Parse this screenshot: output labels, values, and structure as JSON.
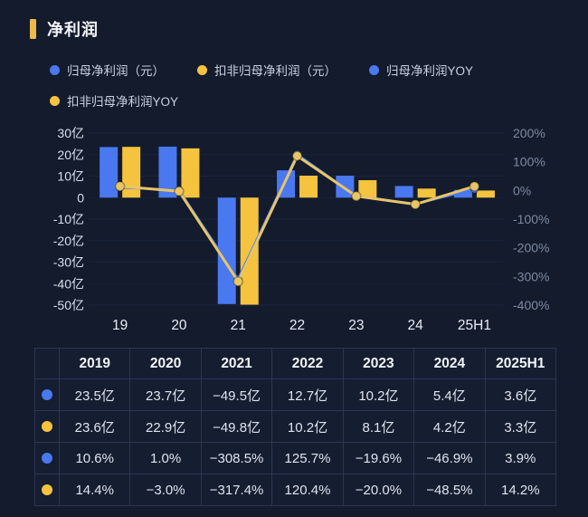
{
  "page": {
    "title": "净利润"
  },
  "legend": [
    {
      "label": "归母净利润（元）",
      "color": "#4a78f0"
    },
    {
      "label": "扣非归母净利润（元）",
      "color": "#f5c33e"
    },
    {
      "label": "归母净利润YOY",
      "color": "#4a78f0"
    },
    {
      "label": "扣非归母净利润YOY",
      "color": "#f5c33e"
    }
  ],
  "chart_data": {
    "type": "bar+line combo",
    "title": "净利润",
    "categories": [
      "19",
      "20",
      "21",
      "22",
      "23",
      "24",
      "25H1"
    ],
    "series": [
      {
        "name": "归母净利润（元）",
        "type": "bar",
        "axis": "left",
        "unit": "亿",
        "color": "#4a78f0",
        "values": [
          23.5,
          23.7,
          -49.5,
          12.7,
          10.2,
          5.4,
          3.6
        ]
      },
      {
        "name": "扣非归母净利润（元）",
        "type": "bar",
        "axis": "left",
        "unit": "亿",
        "color": "#f5c33e",
        "values": [
          23.6,
          22.9,
          -49.8,
          10.2,
          8.1,
          4.2,
          3.3
        ]
      },
      {
        "name": "归母净利润YOY",
        "type": "line",
        "axis": "right",
        "unit": "%",
        "color": "#4a78f0",
        "values": [
          10.6,
          1.0,
          -308.5,
          125.7,
          -19.6,
          -46.9,
          3.9
        ]
      },
      {
        "name": "扣非归母净利润YOY",
        "type": "line",
        "axis": "right",
        "unit": "%",
        "color": "#e8c566",
        "values": [
          14.4,
          -3.0,
          -317.4,
          120.4,
          -20.0,
          -48.5,
          14.2
        ]
      }
    ],
    "left_axis": {
      "min": -50,
      "max": 30,
      "unit": "亿",
      "ticks": [
        "30亿",
        "20亿",
        "10亿",
        "0",
        "-10亿",
        "-20亿",
        "-30亿",
        "-40亿",
        "-50亿"
      ]
    },
    "right_axis": {
      "min": -400,
      "max": 200,
      "unit": "%",
      "ticks": [
        "200%",
        "100%",
        "0%",
        "-100%",
        "-200%",
        "-300%",
        "-400%"
      ]
    },
    "grid": true,
    "legend_position": "top"
  },
  "table": {
    "corner": "",
    "headers": [
      "2019",
      "2020",
      "2021",
      "2022",
      "2023",
      "2024",
      "2025H1"
    ],
    "rows": [
      {
        "dot_color": "#4a78f0",
        "cells": [
          "23.5亿",
          "23.7亿",
          "−49.5亿",
          "12.7亿",
          "10.2亿",
          "5.4亿",
          "3.6亿"
        ]
      },
      {
        "dot_color": "#f5c33e",
        "cells": [
          "23.6亿",
          "22.9亿",
          "−49.8亿",
          "10.2亿",
          "8.1亿",
          "4.2亿",
          "3.3亿"
        ]
      },
      {
        "dot_color": "#4a78f0",
        "cells": [
          "10.6%",
          "1.0%",
          "−308.5%",
          "125.7%",
          "−19.6%",
          "−46.9%",
          "3.9%"
        ]
      },
      {
        "dot_color": "#f5c33e",
        "cells": [
          "14.4%",
          "−3.0%",
          "−317.4%",
          "120.4%",
          "−20.0%",
          "−48.5%",
          "14.2%"
        ]
      }
    ]
  },
  "colors": {
    "background": "#131b2d",
    "bar_blue": "#4a78f0",
    "bar_yellow": "#f5c33e",
    "line_yellow": "#e8c566",
    "title_accent": "#edb94f",
    "grid_line": "#3a486e",
    "axis_left_text": "#d9dfeb",
    "axis_right_text": "#7f8aa0",
    "x_label_text": "#e8ecf4",
    "table_border": "#2c3654"
  }
}
